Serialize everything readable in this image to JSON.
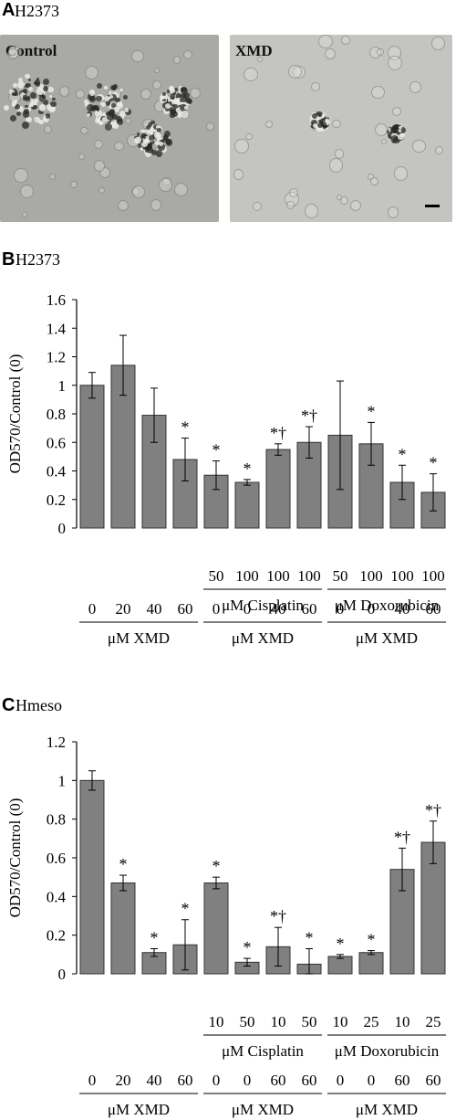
{
  "panelA": {
    "letter": "A",
    "cell_line": "H2373",
    "images": [
      {
        "label": "Control"
      },
      {
        "label": "XMD"
      }
    ]
  },
  "chart_data": [
    {
      "panel": "B",
      "cell_line": "H2373",
      "type": "bar",
      "ylabel": "OD570/Control (0)",
      "ylim": [
        0,
        1.6
      ],
      "yticks": [
        "0",
        "0.2",
        "0.4",
        "0.6",
        "0.8",
        "1",
        "1.2",
        "1.4",
        "1.6"
      ],
      "values": [
        1.0,
        1.14,
        0.79,
        0.48,
        0.37,
        0.32,
        0.55,
        0.6,
        0.65,
        0.59,
        0.32,
        0.25
      ],
      "errors": [
        0.09,
        0.21,
        0.19,
        0.15,
        0.1,
        0.02,
        0.04,
        0.11,
        0.38,
        0.15,
        0.12,
        0.13
      ],
      "marks": [
        "",
        "",
        "",
        "*",
        "*",
        "*",
        "*†",
        "*†",
        "",
        "*",
        "*",
        "*"
      ],
      "drug_rows": [
        {
          "values": [
            "",
            "",
            "",
            "",
            "50",
            "100",
            "100",
            "100",
            "50",
            "100",
            "100",
            "100"
          ]
        }
      ],
      "drug_groups": [
        {
          "label": "μM Cisplatin",
          "from": 4,
          "to": 7
        },
        {
          "label": "μM Doxorubicin",
          "from": 8,
          "to": 11
        }
      ],
      "xmd_values": [
        "0",
        "20",
        "40",
        "60",
        "0",
        "0",
        "40",
        "60",
        "0",
        "0",
        "40",
        "60"
      ],
      "xmd_groups": [
        {
          "label": "μM XMD",
          "from": 0,
          "to": 3
        },
        {
          "label": "μM XMD",
          "from": 4,
          "to": 7
        },
        {
          "label": "μM XMD",
          "from": 8,
          "to": 11
        }
      ]
    },
    {
      "panel": "C",
      "cell_line": "Hmeso",
      "type": "bar",
      "ylabel": "OD570/Control (0)",
      "ylim": [
        0,
        1.2
      ],
      "yticks": [
        "0",
        "0.2",
        "0.4",
        "0.6",
        "0.8",
        "1",
        "1.2"
      ],
      "values": [
        1.0,
        0.47,
        0.11,
        0.15,
        0.47,
        0.06,
        0.14,
        0.05,
        0.09,
        0.11,
        0.54,
        0.68
      ],
      "errors": [
        0.05,
        0.04,
        0.02,
        0.13,
        0.03,
        0.02,
        0.1,
        0.08,
        0.01,
        0.01,
        0.11,
        0.11
      ],
      "marks": [
        "",
        "*",
        "*",
        "*",
        "*",
        "*",
        "*†",
        "*",
        "*",
        "*",
        "*†",
        "*†"
      ],
      "drug_rows": [
        {
          "values": [
            "",
            "",
            "",
            "",
            "10",
            "50",
            "10",
            "50",
            "10",
            "25",
            "10",
            "25"
          ]
        }
      ],
      "drug_groups": [
        {
          "label": "μM Cisplatin",
          "from": 4,
          "to": 7
        },
        {
          "label": "μM Doxorubicin",
          "from": 8,
          "to": 11
        }
      ],
      "xmd_values": [
        "0",
        "20",
        "40",
        "60",
        "0",
        "0",
        "60",
        "60",
        "0",
        "0",
        "60",
        "60"
      ],
      "xmd_groups": [
        {
          "label": "μM XMD",
          "from": 0,
          "to": 3
        },
        {
          "label": "μM XMD",
          "from": 4,
          "to": 7
        },
        {
          "label": "μM XMD",
          "from": 8,
          "to": 11
        }
      ]
    }
  ],
  "colors": {
    "bar_fill": "#808080",
    "bar_stroke": "#333333",
    "micro_control_bg": "#a9a9a6",
    "micro_xmd_bg": "#c4c4c0"
  }
}
